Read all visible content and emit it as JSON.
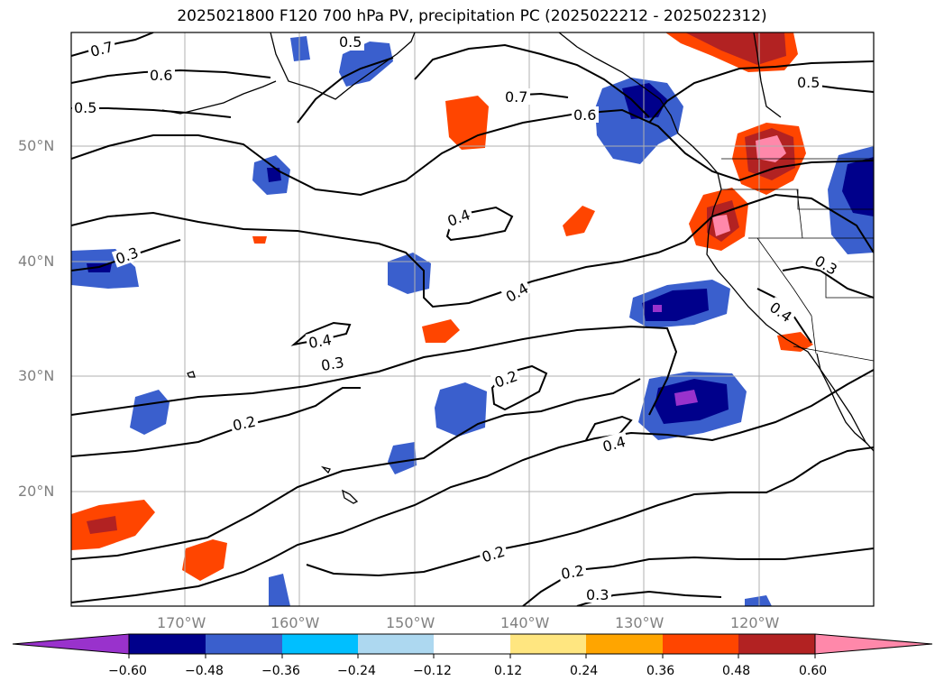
{
  "title": "2025021800 F120 700 hPa PV, precipitation PC (2025022212 - 2025022312)",
  "lat_labels": [
    "50°N",
    "40°N",
    "30°N",
    "20°N"
  ],
  "lon_labels": [
    "170°W",
    "160°W",
    "150°W",
    "140°W",
    "130°W",
    "120°W"
  ],
  "colorbar": {
    "ticks": [
      "−0.60",
      "−0.48",
      "−0.36",
      "−0.24",
      "−0.12",
      "0.12",
      "0.24",
      "0.36",
      "0.48",
      "0.60"
    ],
    "colors": [
      "#9932cc",
      "#00008b",
      "#3a5fcd",
      "#00bfff",
      "#add8f0",
      "#ffffff",
      "#ffe680",
      "#ffa500",
      "#ff4500",
      "#b22222",
      "#ff88aa"
    ]
  },
  "contour_labels": [
    "0.7",
    "0.5",
    "0.6",
    "0.5",
    "0.7",
    "0.6",
    "0.5",
    "0.4",
    "0.3",
    "0.4",
    "0.3",
    "0.2",
    "0.2",
    "0.4",
    "0.4",
    "0.3",
    "0.4",
    "0.2",
    "0.2",
    "0.3"
  ],
  "colors": {
    "contour": "#000000",
    "coast": "#000000",
    "grid": "#b0b0b0"
  }
}
